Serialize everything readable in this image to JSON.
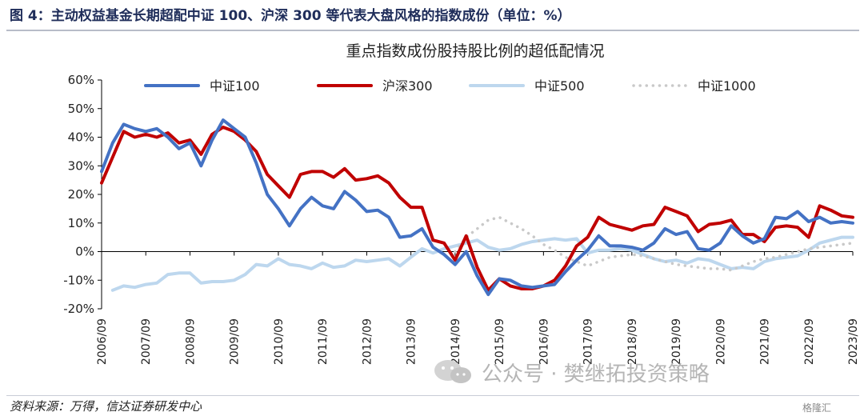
{
  "figure_title": "图 4：主动权益基金长期超配中证 100、沪深 300 等代表大盘风格的指数成份（单位：%）",
  "source": "资料来源：万得，信达证券研发中心",
  "watermark": "公众号 · 樊继拓投资策略",
  "badge": "格隆汇",
  "colors": {
    "zz100": "#4472c4",
    "hs300": "#c00000",
    "zz500": "#bdd7ee",
    "zz1000": "#c9c9c9"
  },
  "chart_data": {
    "type": "line",
    "title": "重点指数成份股持股比例的超低配情况",
    "ylim": [
      -20,
      60
    ],
    "yticks": [
      -20,
      -10,
      0,
      10,
      20,
      30,
      40,
      50,
      60
    ],
    "ytick_labels": [
      "-20%",
      "-10%",
      "0%",
      "10%",
      "20%",
      "30%",
      "40%",
      "50%",
      "60%"
    ],
    "xlim": [
      2006.75,
      2023.75
    ],
    "xticks": [
      2006.75,
      2007.75,
      2008.75,
      2009.75,
      2010.75,
      2011.75,
      2012.75,
      2013.75,
      2014.75,
      2015.75,
      2016.75,
      2017.75,
      2018.75,
      2019.75,
      2020.75,
      2021.75,
      2022.75,
      2023.75
    ],
    "xtick_labels": [
      "2006/09",
      "2007/09",
      "2008/09",
      "2009/09",
      "2010/09",
      "2011/09",
      "2012/09",
      "2013/09",
      "2014/09",
      "2015/09",
      "2016/09",
      "2017/09",
      "2018/09",
      "2019/09",
      "2020/09",
      "2021/09",
      "2022/09",
      "2023/09"
    ],
    "legend_position": "top",
    "grid": false,
    "series": [
      {
        "name": "中证100",
        "color": "#4472c4",
        "style": "solid",
        "x": [
          2006.75,
          2007.0,
          2007.25,
          2007.5,
          2007.75,
          2008.0,
          2008.25,
          2008.5,
          2008.75,
          2009.0,
          2009.25,
          2009.5,
          2009.75,
          2010.0,
          2010.25,
          2010.5,
          2010.75,
          2011.0,
          2011.25,
          2011.5,
          2011.75,
          2012.0,
          2012.25,
          2012.5,
          2012.75,
          2013.0,
          2013.25,
          2013.5,
          2013.75,
          2014.0,
          2014.25,
          2014.5,
          2014.75,
          2015.0,
          2015.25,
          2015.5,
          2015.75,
          2016.0,
          2016.25,
          2016.5,
          2016.75,
          2017.0,
          2017.25,
          2017.5,
          2017.75,
          2018.0,
          2018.25,
          2018.5,
          2018.75,
          2019.0,
          2019.25,
          2019.5,
          2019.75,
          2020.0,
          2020.25,
          2020.5,
          2020.75,
          2021.0,
          2021.25,
          2021.5,
          2021.75,
          2022.0,
          2022.25,
          2022.5,
          2022.75,
          2023.0,
          2023.25,
          2023.5,
          2023.75
        ],
        "y": [
          28,
          38,
          44.5,
          43,
          42,
          43,
          40,
          36,
          38,
          30,
          39,
          46,
          43,
          40,
          31,
          20,
          15,
          9,
          15,
          19,
          16,
          15,
          21,
          18,
          14,
          14.5,
          12,
          5,
          5.5,
          8,
          1.5,
          -1,
          -4.5,
          0,
          -8.5,
          -15,
          -9.5,
          -10,
          -12,
          -12.5,
          -12,
          -11.5,
          -7,
          -3,
          0.5,
          5.5,
          2,
          2,
          1.5,
          0.5,
          3,
          8,
          6,
          7,
          1,
          0.5,
          3,
          9,
          5.5,
          3,
          4.5,
          12,
          11.5,
          14,
          10.5,
          12,
          10,
          10.5,
          10
        ]
      },
      {
        "name": "沪深300",
        "color": "#c00000",
        "style": "solid",
        "x": [
          2006.75,
          2007.0,
          2007.25,
          2007.5,
          2007.75,
          2008.0,
          2008.25,
          2008.5,
          2008.75,
          2009.0,
          2009.25,
          2009.5,
          2009.75,
          2010.0,
          2010.25,
          2010.5,
          2010.75,
          2011.0,
          2011.25,
          2011.5,
          2011.75,
          2012.0,
          2012.25,
          2012.5,
          2012.75,
          2013.0,
          2013.25,
          2013.5,
          2013.75,
          2014.0,
          2014.25,
          2014.5,
          2014.75,
          2015.0,
          2015.25,
          2015.5,
          2015.75,
          2016.0,
          2016.25,
          2016.5,
          2016.75,
          2017.0,
          2017.25,
          2017.5,
          2017.75,
          2018.0,
          2018.25,
          2018.5,
          2018.75,
          2019.0,
          2019.25,
          2019.5,
          2019.75,
          2020.0,
          2020.25,
          2020.5,
          2020.75,
          2021.0,
          2021.25,
          2021.5,
          2021.75,
          2022.0,
          2022.25,
          2022.5,
          2022.75,
          2023.0,
          2023.25,
          2023.5,
          2023.75
        ],
        "y": [
          24,
          33,
          42,
          40,
          41,
          40,
          41.5,
          38,
          39,
          34,
          41,
          43.5,
          42,
          39,
          35,
          27,
          23,
          19,
          27,
          28,
          28,
          26,
          29,
          25,
          25.5,
          26.5,
          24,
          19,
          15.5,
          15.5,
          4,
          3,
          -3,
          5.5,
          -5.5,
          -13.5,
          -9.5,
          -12,
          -13,
          -13,
          -12,
          -10,
          -5,
          2,
          5,
          12,
          9.5,
          8.5,
          7.5,
          9,
          9.5,
          15.5,
          14,
          12.5,
          7,
          9.5,
          10,
          11,
          6,
          6,
          3.5,
          8.5,
          9,
          8.5,
          5,
          16,
          14.5,
          12.5,
          12
        ]
      },
      {
        "name": "中证500",
        "color": "#bdd7ee",
        "style": "solid",
        "x": [
          2007.0,
          2007.25,
          2007.5,
          2007.75,
          2008.0,
          2008.25,
          2008.5,
          2008.75,
          2009.0,
          2009.25,
          2009.5,
          2009.75,
          2010.0,
          2010.25,
          2010.5,
          2010.75,
          2011.0,
          2011.25,
          2011.5,
          2011.75,
          2012.0,
          2012.25,
          2012.5,
          2012.75,
          2013.0,
          2013.25,
          2013.5,
          2013.75,
          2014.0,
          2014.25,
          2014.5,
          2014.75,
          2015.0,
          2015.25,
          2015.5,
          2015.75,
          2016.0,
          2016.25,
          2016.5,
          2016.75,
          2017.0,
          2017.25,
          2017.5,
          2017.75,
          2018.0,
          2018.25,
          2018.5,
          2018.75,
          2019.0,
          2019.25,
          2019.5,
          2019.75,
          2020.0,
          2020.25,
          2020.5,
          2020.75,
          2021.0,
          2021.25,
          2021.5,
          2021.75,
          2022.0,
          2022.25,
          2022.5,
          2022.75,
          2023.0,
          2023.25,
          2023.5,
          2023.75
        ],
        "y": [
          -13.5,
          -12,
          -12.5,
          -11.5,
          -11,
          -8,
          -7.5,
          -7.5,
          -11,
          -10.5,
          -10.5,
          -10,
          -8,
          -4.5,
          -5,
          -2.5,
          -4.5,
          -5,
          -6,
          -4,
          -5.5,
          -5,
          -3,
          -3.5,
          -3,
          -2.5,
          -5,
          -2,
          1,
          -0.5,
          1,
          2,
          3,
          4,
          1.5,
          0.5,
          1,
          2.5,
          3.5,
          4,
          4.5,
          4,
          4.5,
          -0.5,
          0.5,
          0.5,
          1,
          0.5,
          -1,
          -2.5,
          -3.5,
          -3,
          -4,
          -2.5,
          -3,
          -4.5,
          -6,
          -5.5,
          -6,
          -3.5,
          -2.5,
          -2,
          -1.5,
          0.5,
          3,
          4,
          5,
          5
        ]
      },
      {
        "name": "中证1000",
        "color": "#c9c9c9",
        "style": "dotted",
        "x": [
          2014.75,
          2015.0,
          2015.25,
          2015.5,
          2015.75,
          2016.0,
          2016.25,
          2016.5,
          2016.75,
          2017.0,
          2017.25,
          2017.5,
          2017.75,
          2018.0,
          2018.25,
          2018.5,
          2018.75,
          2019.0,
          2019.25,
          2019.5,
          2019.75,
          2020.0,
          2020.25,
          2020.5,
          2020.75,
          2021.0,
          2021.25,
          2021.5,
          2021.75,
          2022.0,
          2022.25,
          2022.5,
          2022.75,
          2023.0,
          2023.25,
          2023.5,
          2023.75
        ],
        "y": [
          0,
          5,
          8,
          11,
          12,
          10,
          8,
          5.5,
          2.5,
          0.5,
          -2,
          -3.5,
          -5,
          -3.5,
          -2,
          -1.5,
          -1,
          -1.5,
          -2.5,
          -3.5,
          -4.5,
          -5,
          -5.5,
          -6,
          -6,
          -6.5,
          -5,
          -3.5,
          -2.5,
          -2,
          -1,
          0,
          1,
          1.5,
          2,
          2.5,
          3
        ]
      }
    ]
  }
}
